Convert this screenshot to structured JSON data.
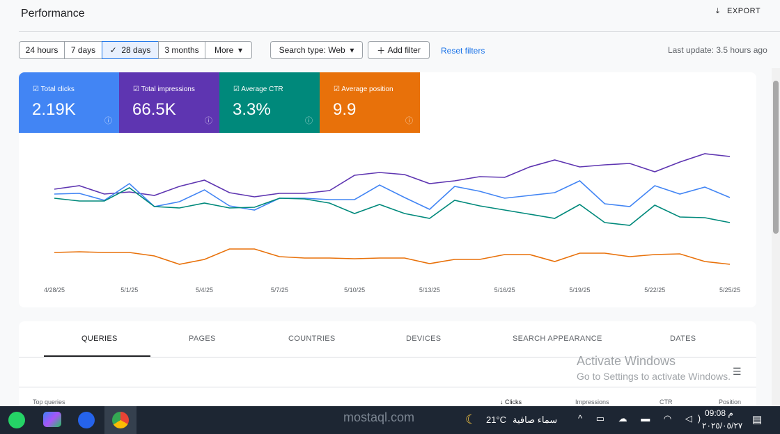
{
  "header": {
    "title": "Performance",
    "export": "EXPORT"
  },
  "filters": {
    "ranges": [
      "24 hours",
      "7 days",
      "28 days",
      "3 months",
      "More"
    ],
    "selected": 2,
    "search_type": "Search type: Web",
    "add_filter": "Add filter",
    "reset": "Reset filters",
    "last_update": "Last update: 3.5 hours ago"
  },
  "metrics": [
    {
      "label": "Total clicks",
      "value": "2.19K",
      "color": "#4285f4"
    },
    {
      "label": "Total impressions",
      "value": "66.5K",
      "color": "#5e35b1"
    },
    {
      "label": "Average CTR",
      "value": "3.3%",
      "color": "#00897b"
    },
    {
      "label": "Average position",
      "value": "9.9",
      "color": "#e8710a"
    }
  ],
  "chart_data": {
    "type": "line",
    "categories": [
      "4/28/25",
      null,
      null,
      "5/1/25",
      null,
      null,
      "5/4/25",
      null,
      null,
      "5/7/25",
      null,
      null,
      "5/10/25",
      null,
      null,
      "5/13/25",
      null,
      null,
      "5/16/25",
      null,
      null,
      "5/19/25",
      null,
      null,
      "5/22/25",
      null,
      null,
      "5/25/25"
    ],
    "ylim": [
      0,
      220
    ],
    "series": [
      {
        "color": "#5e35b1",
        "values": [
          128,
          133,
          121,
          124,
          119,
          132,
          141,
          123,
          117,
          122,
          122,
          126,
          148,
          152,
          149,
          136,
          140,
          146,
          145,
          160,
          170,
          160,
          163,
          165,
          153,
          167,
          179,
          175
        ]
      },
      {
        "color": "#4285f4",
        "values": [
          121,
          122,
          112,
          136,
          103,
          110,
          127,
          104,
          98,
          115,
          115,
          113,
          113,
          134,
          116,
          99,
          132,
          125,
          115,
          119,
          123,
          140,
          107,
          103,
          133,
          121,
          131,
          116
        ]
      },
      {
        "color": "#00897b",
        "values": [
          115,
          111,
          111,
          130,
          103,
          101,
          108,
          101,
          102,
          115,
          114,
          108,
          93,
          106,
          93,
          86,
          112,
          104,
          98,
          92,
          86,
          106,
          80,
          76,
          105,
          88,
          87,
          80
        ]
      },
      {
        "color": "#e8710a",
        "values": [
          37,
          38,
          37,
          37,
          32,
          20,
          27,
          42,
          42,
          31,
          29,
          29,
          28,
          29,
          29,
          21,
          27,
          27,
          34,
          34,
          24,
          36,
          36,
          31,
          34,
          35,
          24,
          20
        ]
      }
    ]
  },
  "tabs": [
    "QUERIES",
    "PAGES",
    "COUNTRIES",
    "DEVICES",
    "SEARCH APPEARANCE",
    "DATES"
  ],
  "table": {
    "title": "Top queries",
    "columns": [
      "Clicks",
      "Impressions",
      "CTR",
      "Position"
    ]
  },
  "overlay": {
    "activate": "Activate Windows",
    "hint": "Go to Settings to activate Windows."
  },
  "taskbar": {
    "watermark": "mostaql.com",
    "weather": "21°C",
    "condition": "سماء صافية",
    "time": "09:08 م",
    "date": "٢٠٢٥/٠٥/٢٧"
  }
}
